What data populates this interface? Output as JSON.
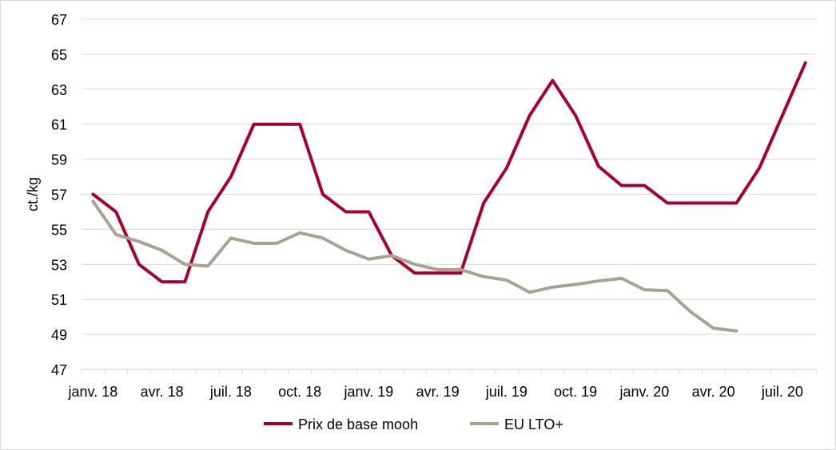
{
  "chart_data": {
    "type": "line",
    "title": "",
    "xlabel": "",
    "ylabel": "ct./kg",
    "ylim": [
      47,
      67
    ],
    "yticks": [
      47,
      49,
      51,
      53,
      55,
      57,
      59,
      61,
      63,
      65,
      67
    ],
    "x": [
      "2018-01",
      "2018-02",
      "2018-03",
      "2018-04",
      "2018-05",
      "2018-06",
      "2018-07",
      "2018-08",
      "2018-09",
      "2018-10",
      "2018-11",
      "2018-12",
      "2019-01",
      "2019-02",
      "2019-03",
      "2019-04",
      "2019-05",
      "2019-06",
      "2019-07",
      "2019-08",
      "2019-09",
      "2019-10",
      "2019-11",
      "2019-12",
      "2020-01",
      "2020-02",
      "2020-03",
      "2020-04",
      "2020-05",
      "2020-06",
      "2020-07",
      "2020-08"
    ],
    "xtick_labels": [
      "janv. 18",
      "avr. 18",
      "juil. 18",
      "oct. 18",
      "janv. 19",
      "avr. 19",
      "juil. 19",
      "oct. 19",
      "janv. 20",
      "avr. 20",
      "juil. 20"
    ],
    "grid": true,
    "legend_position": "bottom",
    "series": [
      {
        "name": "Prix de base mooh",
        "color": "#A50034",
        "values": [
          57,
          56,
          53,
          52,
          52,
          56,
          58,
          61,
          61,
          61,
          57,
          56,
          56,
          53.5,
          52.5,
          52.5,
          52.5,
          56.5,
          58.5,
          61.5,
          63.5,
          61.5,
          58.6,
          57.5,
          57.5,
          56.5,
          56.5,
          56.5,
          56.5,
          58.5,
          61.5,
          64.5
        ]
      },
      {
        "name": "EU LTO+",
        "color": "#A8A391",
        "values": [
          56.6,
          54.7,
          54.3,
          53.8,
          53.0,
          52.9,
          54.5,
          54.2,
          54.2,
          54.8,
          54.5,
          53.8,
          53.3,
          53.5,
          53.0,
          52.7,
          52.7,
          52.3,
          52.1,
          51.4,
          51.7,
          51.85,
          52.05,
          52.2,
          51.55,
          51.5,
          50.3,
          49.35,
          49.2,
          null,
          null,
          null
        ]
      }
    ]
  }
}
